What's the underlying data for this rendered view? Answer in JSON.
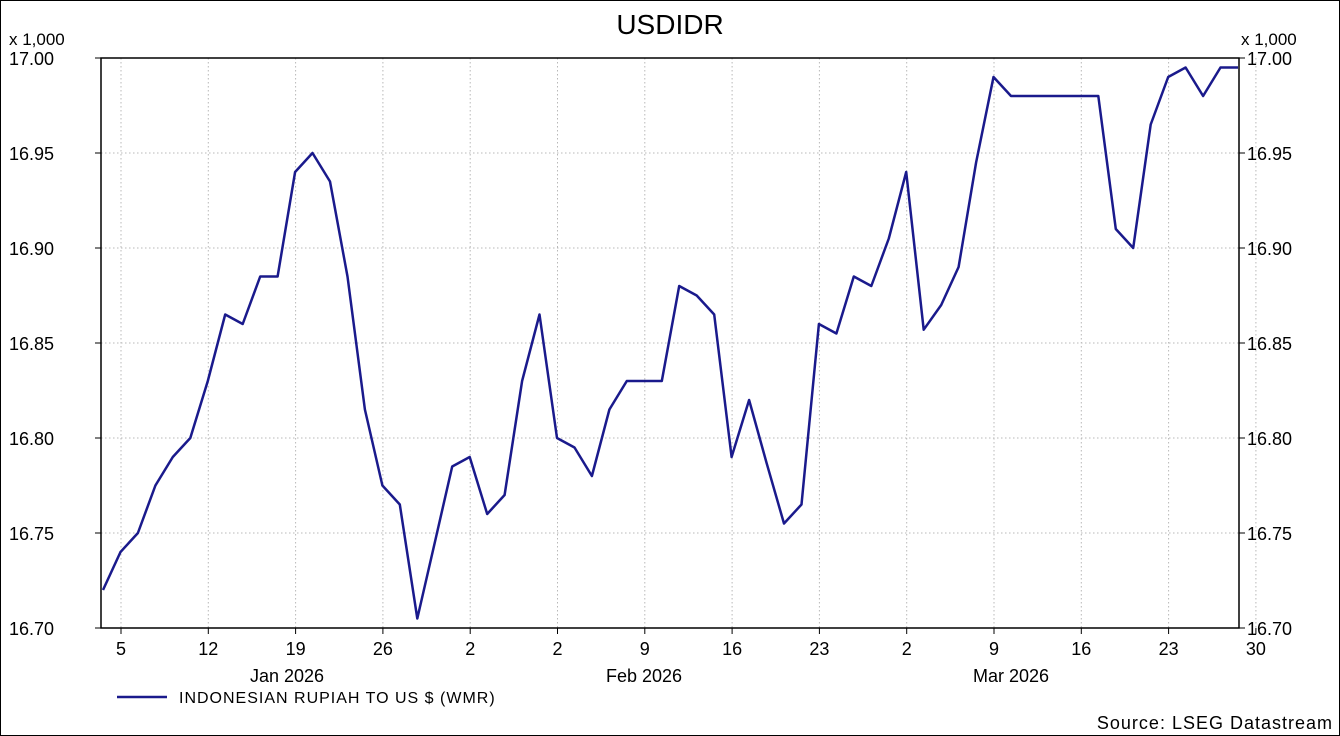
{
  "chart_data": {
    "type": "line",
    "title": "USDIDR",
    "y_multiplier_label": "x 1,000",
    "ylim": [
      16.7,
      17.0
    ],
    "y_ticks": [
      "16.70",
      "16.75",
      "16.80",
      "16.85",
      "16.90",
      "16.95",
      "17.00"
    ],
    "x_day_ticks": [
      "5",
      "12",
      "19",
      "26",
      "2",
      "2",
      "9",
      "16",
      "23",
      "2",
      "9",
      "16",
      "23",
      "30"
    ],
    "x_month_labels": [
      "Jan 2026",
      "Feb 2026",
      "Mar 2026"
    ],
    "grid": true,
    "legend_position": "bottom-left",
    "series": [
      {
        "name": "INDONESIAN RUPIAH TO US $ (WMR)",
        "color": "#1a1a8c",
        "values": [
          16.72,
          16.74,
          16.75,
          16.775,
          16.79,
          16.8,
          16.83,
          16.865,
          16.86,
          16.885,
          16.885,
          16.94,
          16.95,
          16.935,
          16.885,
          16.815,
          16.775,
          16.765,
          16.705,
          16.745,
          16.785,
          16.79,
          16.76,
          16.77,
          16.83,
          16.865,
          16.8,
          16.795,
          16.78,
          16.815,
          16.83,
          16.83,
          16.83,
          16.88,
          16.875,
          16.865,
          16.79,
          16.82,
          16.787,
          16.755,
          16.765,
          16.86,
          16.855,
          16.885,
          16.88,
          16.905,
          16.94,
          16.857,
          16.87,
          16.89,
          16.945,
          16.99,
          16.98,
          16.98,
          16.98,
          16.98,
          16.98,
          16.98,
          16.91,
          16.9,
          16.965,
          16.99,
          16.995,
          16.98,
          16.995,
          16.995
        ]
      }
    ]
  },
  "source": "Source: LSEG Datastream"
}
